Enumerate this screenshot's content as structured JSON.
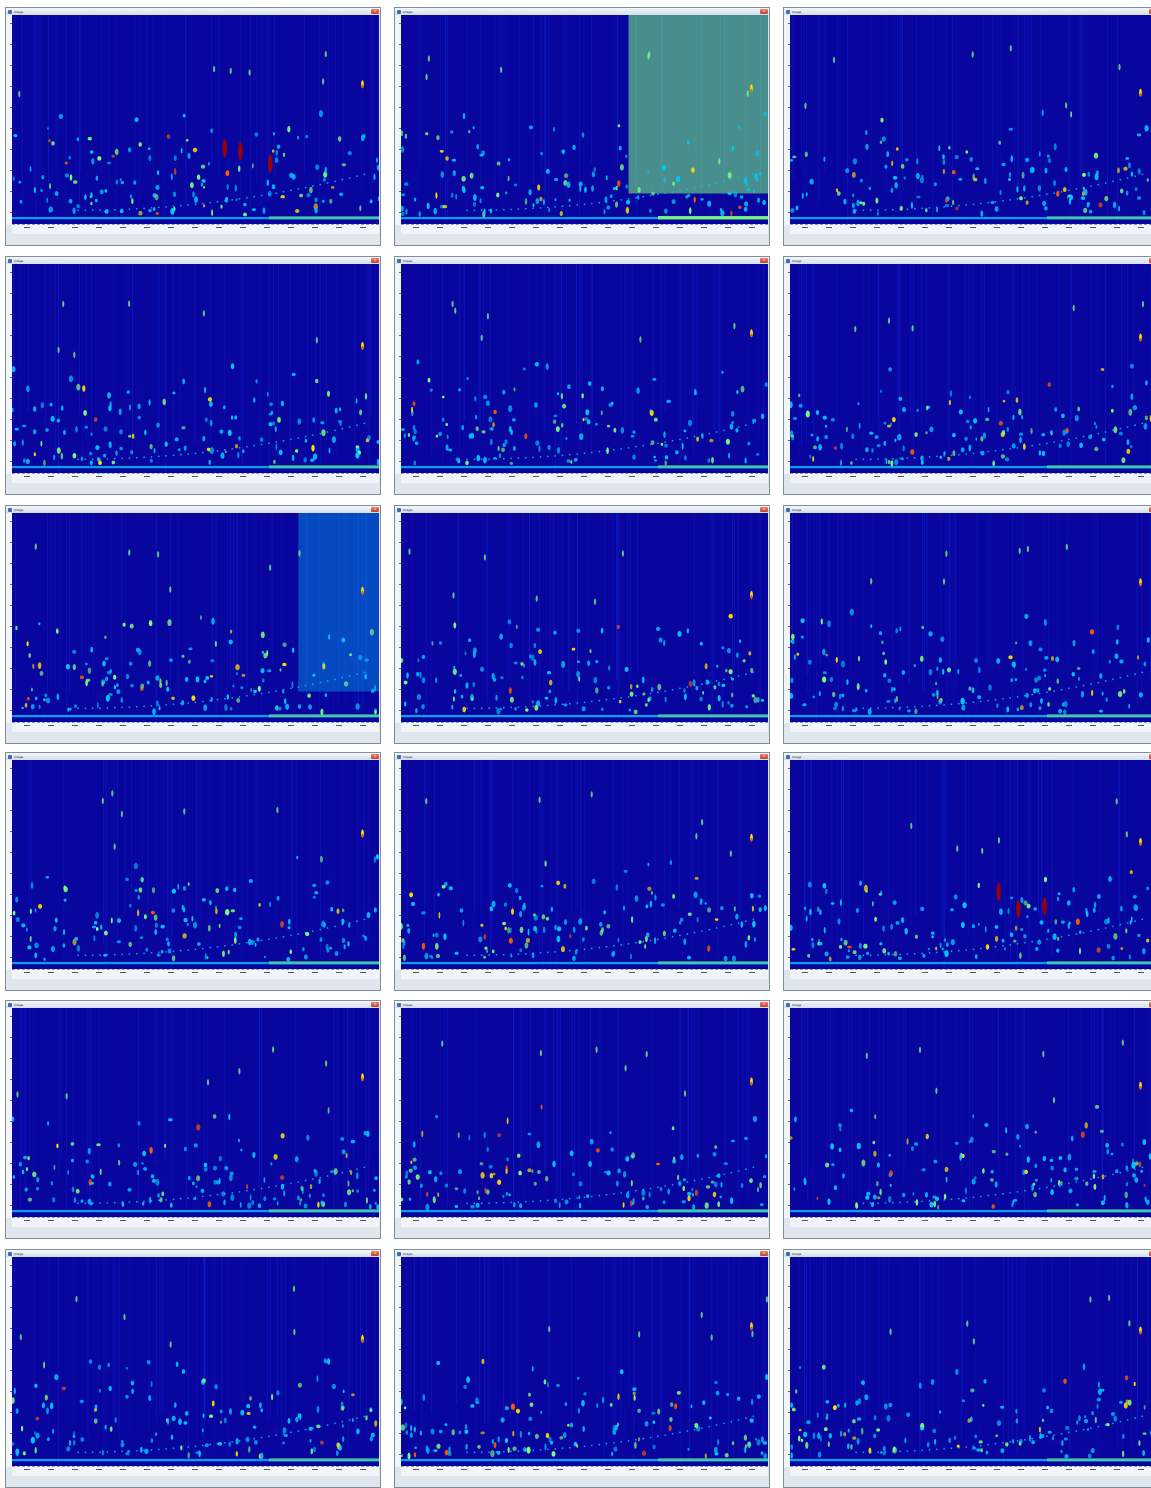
{
  "colors": {
    "plot_background": "#08069e",
    "window_frame": "#7f8c99",
    "colormap": [
      "#1e3cff",
      "#00c8ff",
      "#7dff7d",
      "#ffe100",
      "#ff5a00",
      "#a00000"
    ]
  },
  "icons": {
    "app": "app-icon",
    "close": "close-icon"
  },
  "windows": [
    {
      "title": "Image",
      "status_left": "",
      "status_right": ""
    },
    {
      "title": "Image",
      "status_left": "",
      "status_right": ""
    },
    {
      "title": "Image",
      "status_left": "",
      "status_right": ""
    },
    {
      "title": "Image",
      "status_left": "",
      "status_right": ""
    },
    {
      "title": "Image",
      "status_left": "",
      "status_right": ""
    },
    {
      "title": "Image",
      "status_left": "",
      "status_right": ""
    },
    {
      "title": "Image",
      "status_left": "",
      "status_right": ""
    },
    {
      "title": "Image",
      "status_left": "",
      "status_right": ""
    },
    {
      "title": "Image",
      "status_left": "",
      "status_right": ""
    },
    {
      "title": "Image",
      "status_left": "",
      "status_right": ""
    },
    {
      "title": "Image",
      "status_left": "",
      "status_right": ""
    },
    {
      "title": "Image",
      "status_left": "",
      "status_right": ""
    },
    {
      "title": "Image",
      "status_left": "",
      "status_right": ""
    },
    {
      "title": "Image",
      "status_left": "",
      "status_right": ""
    },
    {
      "title": "Image",
      "status_left": "",
      "status_right": ""
    },
    {
      "title": "Image",
      "status_left": "",
      "status_right": ""
    },
    {
      "title": "Image",
      "status_left": "",
      "status_right": ""
    },
    {
      "title": "Image",
      "status_left": "",
      "status_right": ""
    }
  ]
}
